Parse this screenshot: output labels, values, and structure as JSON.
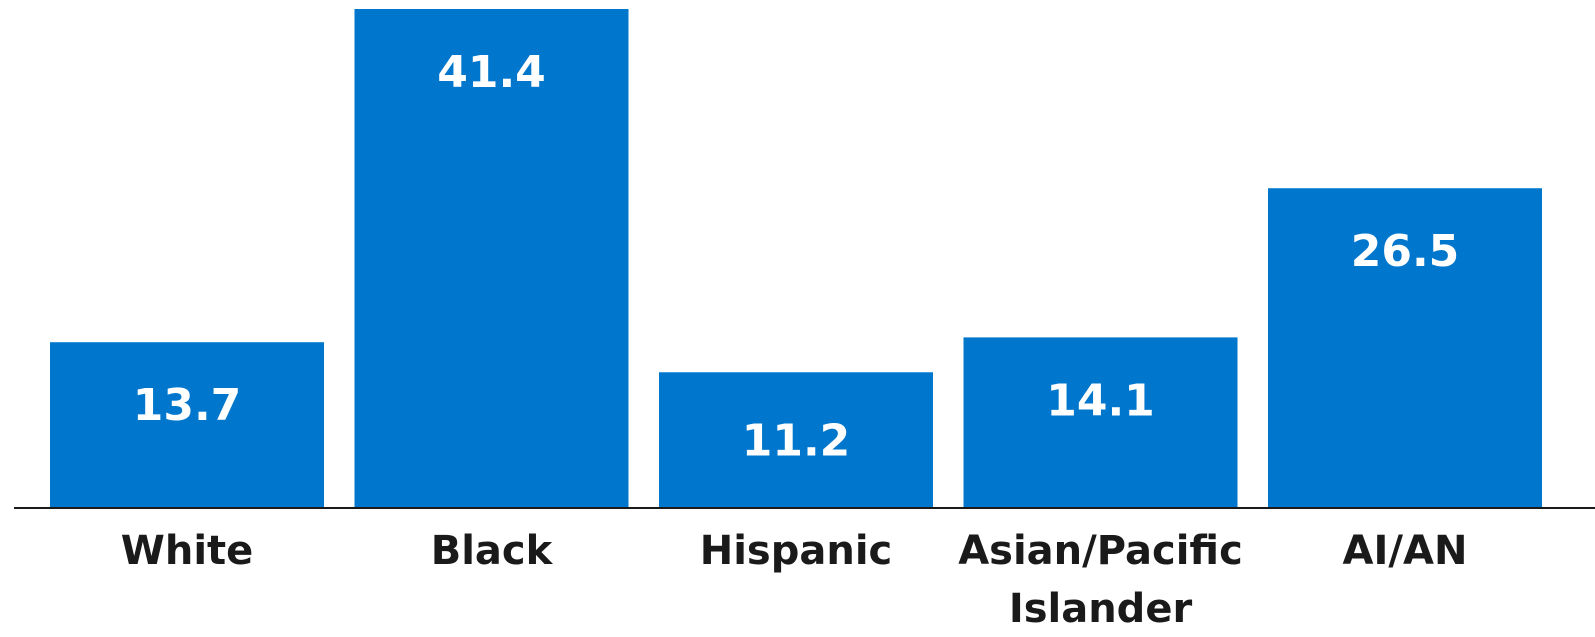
{
  "chart_data": {
    "type": "bar",
    "categories": [
      "White",
      "Black",
      "Hispanic",
      "Asian/Pacific Islander",
      "AI/AN"
    ],
    "category_lines": [
      [
        "White"
      ],
      [
        "Black"
      ],
      [
        "Hispanic"
      ],
      [
        "Asian/Pacific",
        "Islander"
      ],
      [
        "AI/AN"
      ]
    ],
    "values": [
      13.7,
      41.4,
      11.2,
      14.1,
      26.5
    ],
    "data_labels": [
      "13.7",
      "41.4",
      "11.2",
      "14.1",
      "26.5"
    ],
    "ylim": [
      0,
      41.4
    ],
    "grid": false,
    "legend": "none",
    "colors": {
      "bar": "#0077CC",
      "bar_label": "#ffffff",
      "axis": "#1a1a1a",
      "category_label": "#1a1a1a"
    }
  }
}
